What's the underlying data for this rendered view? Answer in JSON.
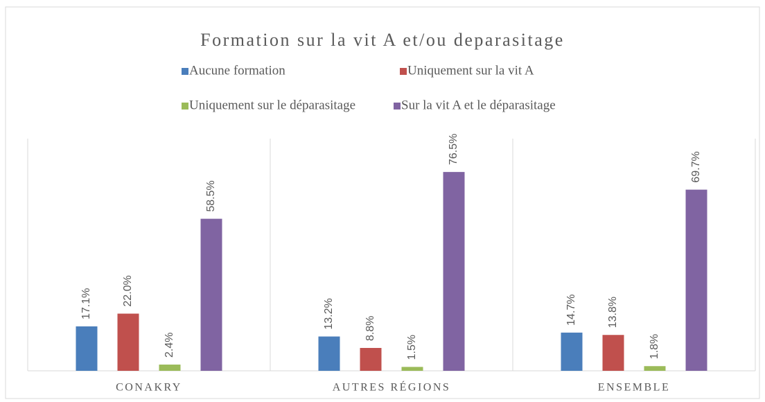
{
  "chart_data": {
    "type": "bar",
    "title": "Formation sur la vit A et/ou deparasitage",
    "categories": [
      "CONAKRY",
      "AUTRES RÉGIONS",
      "ENSEMBLE"
    ],
    "series": [
      {
        "name": "Aucune formation",
        "color": "#4a7ebb",
        "values": [
          17.1,
          13.2,
          14.7
        ],
        "value_labels": [
          "17.1%",
          "13.2%",
          "14.7%"
        ]
      },
      {
        "name": "Uniquement sur la vit A",
        "color": "#c0504d",
        "values": [
          22.0,
          8.8,
          13.8
        ],
        "value_labels": [
          "22.0%",
          "8.8%",
          "13.8%"
        ]
      },
      {
        "name": "Uniquement sur le déparasitage",
        "color": "#9bbb59",
        "values": [
          2.4,
          1.5,
          1.8
        ],
        "value_labels": [
          "2.4%",
          "1.5%",
          "1.8%"
        ]
      },
      {
        "name": "Sur la vit A et le déparasitage",
        "color": "#8064a2",
        "values": [
          58.5,
          76.5,
          69.7
        ],
        "value_labels": [
          "58.5%",
          "76.5%",
          "69.7%"
        ]
      }
    ]
  }
}
